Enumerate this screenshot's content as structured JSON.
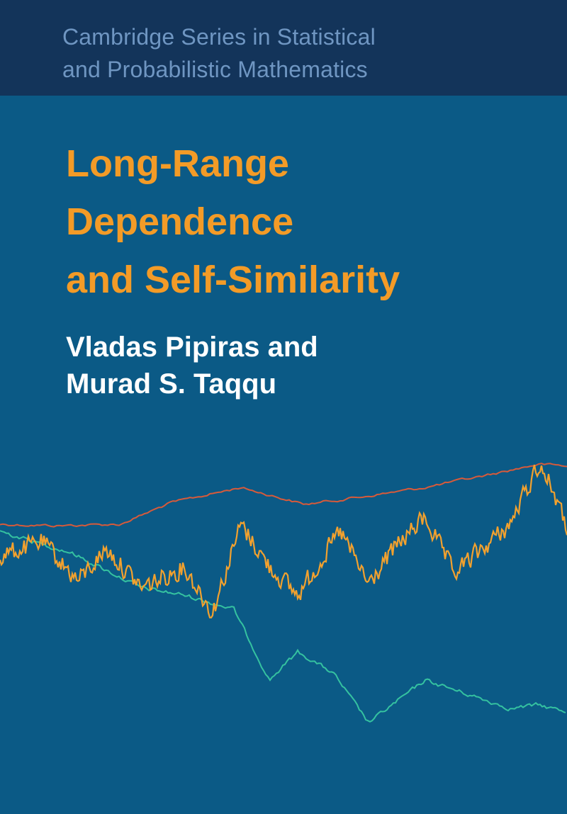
{
  "series": {
    "line1": "Cambridge Series in Statistical",
    "line2": "and Probabilistic Mathematics"
  },
  "title": {
    "line1": "Long-Range",
    "line2": "Dependence",
    "line3": "and Self-Similarity"
  },
  "authors": {
    "line1": "Vladas Pipiras and",
    "line2": "Murad S. Taqqu"
  },
  "colors": {
    "background": "#0b5a86",
    "series_band": "#13345a",
    "series_text": "#6f96c2",
    "title": "#f39b27",
    "authors": "#ffffff",
    "path_orange": "#f2a12e",
    "path_red": "#d85a3a",
    "path_green": "#35c2a0"
  }
}
